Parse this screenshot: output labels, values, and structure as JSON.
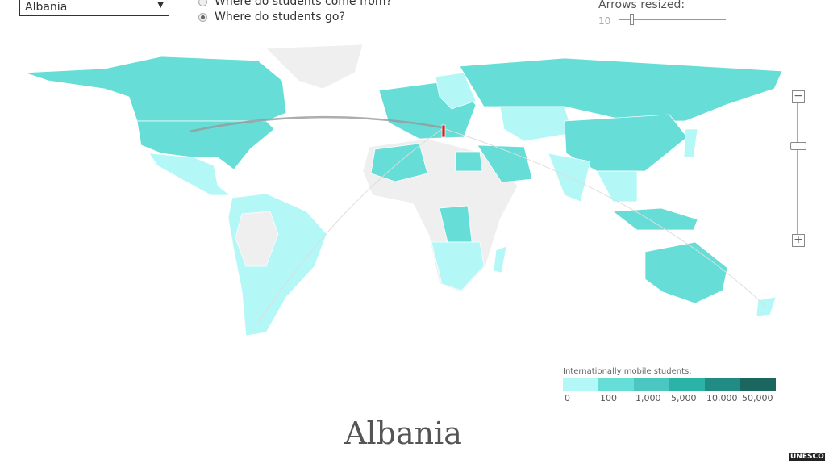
{
  "controls": {
    "country_select": "Albania",
    "radio_from": "Where do students come from?",
    "radio_to": "Where do students go?",
    "selected_radio": "to",
    "arrows_label": "Arrows resized:",
    "arrows_value": "10"
  },
  "zoom": {
    "minus": "−",
    "plus": "+"
  },
  "legend": {
    "title": "Internationally mobile students:",
    "labels": [
      "0",
      "100",
      "1,000",
      "5,000",
      "10,000",
      "50,000"
    ],
    "colors": [
      "#b4f7f7",
      "#66ddd6",
      "#4cc6c0",
      "#2bb3a8",
      "#228c84",
      "#1c6660"
    ]
  },
  "colors": {
    "no_data": "#efefef",
    "selected_country": "#c62828"
  },
  "title": "Albania",
  "logo": "UNESCO"
}
